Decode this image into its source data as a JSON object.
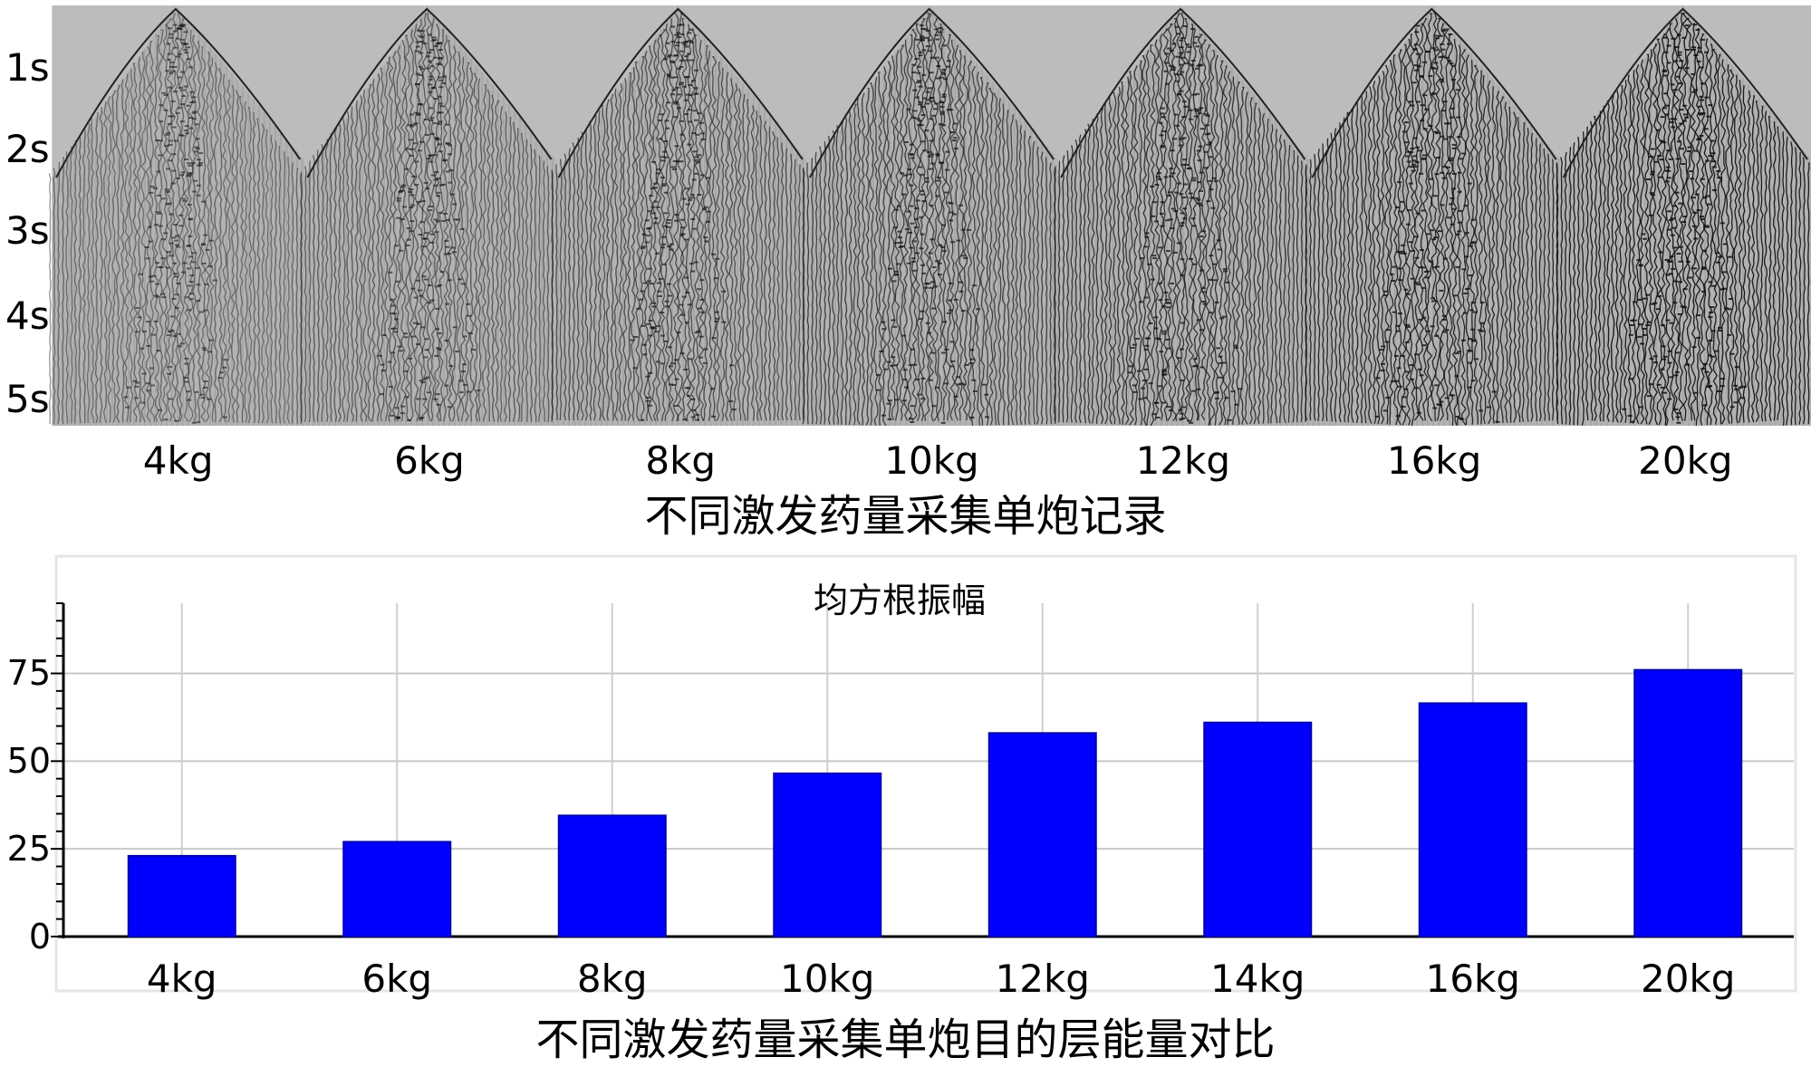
{
  "seismic_panel": {
    "title": "不同激发药量采集单炮记录",
    "time_axis_labels": [
      "1s",
      "2s",
      "3s",
      "4s",
      "5s"
    ],
    "shot_labels": [
      "4kg",
      "6kg",
      "8kg",
      "10kg",
      "12kg",
      "16kg",
      "20kg"
    ],
    "shot_charges_kg": [
      4,
      6,
      8,
      10,
      12,
      16,
      20
    ],
    "colors": {
      "background": "#b3b3b3",
      "trace": "#111111"
    }
  },
  "chart_data": {
    "type": "bar",
    "title": "均方根振幅",
    "caption": "不同激发药量采集单炮目的层能量对比",
    "categories": [
      "4kg",
      "6kg",
      "8kg",
      "10kg",
      "12kg",
      "14kg",
      "16kg",
      "20kg"
    ],
    "values": [
      23,
      27,
      34.5,
      46.5,
      58,
      61,
      66.5,
      76
    ],
    "ylim": [
      0,
      95
    ],
    "yticks": [
      0,
      25,
      50,
      75
    ],
    "grid": true,
    "legend": "none",
    "bar_color": "#0000ff"
  }
}
